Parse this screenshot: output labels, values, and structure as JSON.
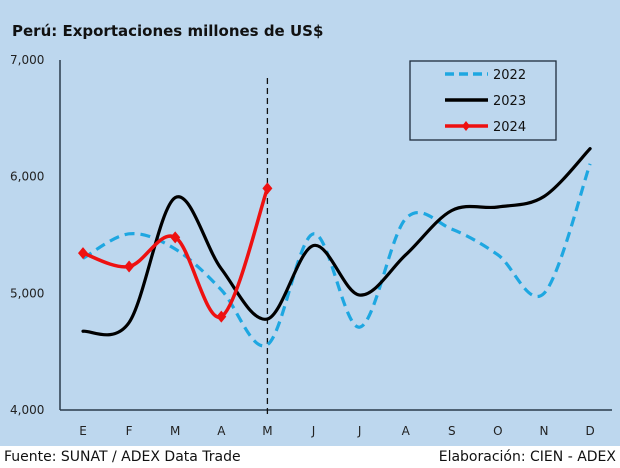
{
  "chart_data": {
    "type": "line",
    "title": "Perú: Exportaciones millones de US$",
    "xlabel": "",
    "ylabel": "",
    "categories": [
      "E",
      "F",
      "M",
      "A",
      "M",
      "J",
      "J",
      "A",
      "S",
      "O",
      "N",
      "D"
    ],
    "ylim": [
      4000,
      7000
    ],
    "yticks": [
      4000,
      5000,
      6000,
      7000
    ],
    "ytick_labels": [
      "4,000",
      "5,000",
      "6,000",
      "7,000"
    ],
    "grid": false,
    "legend_position": "top-right",
    "annotations": [
      {
        "type": "vertical-dashed-line",
        "at_category_index": 4
      }
    ],
    "series": [
      {
        "name": "2022",
        "color": "#1ea7e1",
        "style": "dashed",
        "smooth": true,
        "markers": false,
        "values": [
          5300,
          5510,
          5380,
          5030,
          4560,
          5510,
          4710,
          5640,
          5550,
          5330,
          5000,
          6110
        ]
      },
      {
        "name": "2023",
        "color": "#000000",
        "style": "solid",
        "smooth": true,
        "markers": false,
        "values": [
          4675,
          4750,
          5820,
          5210,
          4780,
          5410,
          4985,
          5330,
          5710,
          5740,
          5830,
          6240
        ]
      },
      {
        "name": "2024",
        "color": "#ee1111",
        "style": "solid",
        "smooth": true,
        "markers": true,
        "values": [
          5345,
          5230,
          5480,
          4800,
          5900
        ]
      }
    ]
  },
  "footer": {
    "source": "Fuente: SUNAT / ADEX Data Trade",
    "credit": "Elaboración: CIEN - ADEX"
  }
}
